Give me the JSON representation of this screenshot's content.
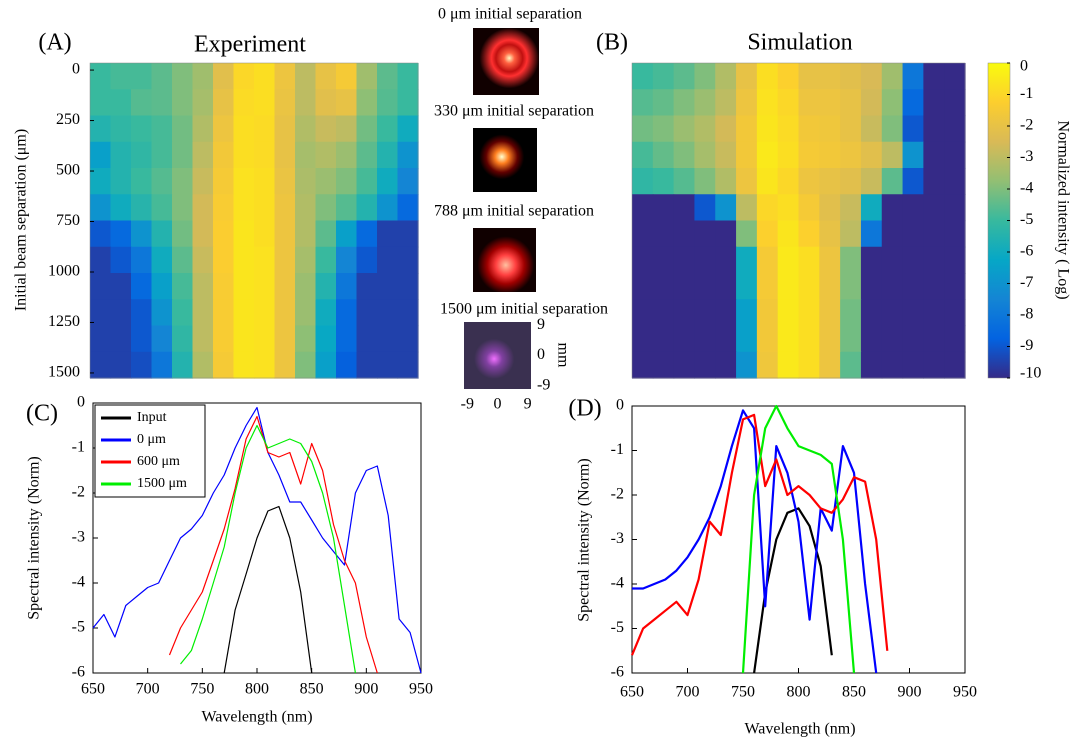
{
  "chart_data": [
    {
      "type": "heatmap",
      "panel_label": "(A)",
      "title": "Experiment",
      "ylabel": "Initial beam separation (μm)",
      "ylim": [
        -35,
        1525
      ],
      "y_inverted": true,
      "yticks": [
        0,
        250,
        500,
        750,
        1000,
        1250,
        1500
      ],
      "zlim": [
        -10,
        0
      ],
      "colormap": [
        "#352a87",
        "#0363e1",
        "#1485d4",
        "#06a7c6",
        "#38b99e",
        "#92bf73",
        "#d9ba56",
        "#fcce2e",
        "#f9fb0e"
      ],
      "z": [
        [
          -5,
          -4.8,
          -4.8,
          -4.5,
          -4,
          -3.5,
          -2.2,
          -1,
          -0.8,
          -1.8,
          -3,
          -2,
          -1.5,
          -3.5,
          -4.5,
          -5
        ],
        [
          -5,
          -5,
          -4.6,
          -4.5,
          -4,
          -3.4,
          -2,
          -0.9,
          -0.8,
          -1.9,
          -3,
          -2.2,
          -2,
          -3.8,
          -4.6,
          -5
        ],
        [
          -5.5,
          -5.2,
          -5,
          -4.8,
          -4.2,
          -3.2,
          -1.8,
          -0.8,
          -0.9,
          -2,
          -3.2,
          -2.8,
          -3,
          -4.2,
          -5,
          -6
        ],
        [
          -6.5,
          -5.5,
          -5.2,
          -4.8,
          -4.2,
          -3,
          -1.6,
          -0.8,
          -0.9,
          -2,
          -3.4,
          -3.2,
          -3.6,
          -4.5,
          -5.5,
          -7
        ],
        [
          -6,
          -5.5,
          -5,
          -4.6,
          -4,
          -2.8,
          -1.5,
          -0.7,
          -0.8,
          -1.9,
          -3.3,
          -3.6,
          -4,
          -4.8,
          -6,
          -7.5
        ],
        [
          -7,
          -6,
          -5.4,
          -4.8,
          -4,
          -2.6,
          -1.4,
          -0.7,
          -0.8,
          -1.8,
          -3.2,
          -4,
          -4.6,
          -5.5,
          -7,
          -8.5
        ],
        [
          -9,
          -8.5,
          -7,
          -5.5,
          -4.2,
          -2.6,
          -1.3,
          -0.6,
          -0.8,
          -1.8,
          -3.2,
          -4.5,
          -6.5,
          -8.5,
          -9.5,
          -9.5
        ],
        [
          -9.5,
          -9,
          -8,
          -6,
          -4.5,
          -2.8,
          -1.3,
          -0.6,
          -0.7,
          -1.8,
          -3.4,
          -5,
          -7.5,
          -9,
          -9.5,
          -9.5
        ],
        [
          -9.5,
          -9.5,
          -8.5,
          -6.5,
          -4.8,
          -3,
          -1.4,
          -0.6,
          -0.7,
          -1.8,
          -3.6,
          -5.5,
          -8,
          -9.5,
          -9.5,
          -9.5
        ],
        [
          -9.5,
          -9.5,
          -9,
          -7,
          -5,
          -3,
          -1.4,
          -0.6,
          -0.7,
          -1.8,
          -3.6,
          -6,
          -8.5,
          -9.5,
          -9.5,
          -9.5
        ],
        [
          -9.5,
          -9.5,
          -9,
          -7.5,
          -5.2,
          -3,
          -1.4,
          -0.6,
          -0.7,
          -1.8,
          -3.8,
          -6.2,
          -8.5,
          -9.5,
          -9.5,
          -9.5
        ],
        [
          -9.5,
          -9.5,
          -9.2,
          -8,
          -5.5,
          -3.2,
          -1.5,
          -0.6,
          -0.7,
          -1.8,
          -4,
          -6.5,
          -8.8,
          -9.5,
          -9.5,
          -9.5
        ]
      ]
    },
    {
      "type": "heatmap",
      "panel_label": "(B)",
      "title": "Simulation",
      "zlim": [
        -10,
        0
      ],
      "zticks": [
        0,
        -1,
        -2,
        -3,
        -4,
        -5,
        -6,
        -7,
        -8,
        -9,
        -10
      ],
      "zlabel": "Normalized intensity ( Log)",
      "colormap": [
        "#352a87",
        "#0363e1",
        "#1485d4",
        "#06a7c6",
        "#38b99e",
        "#92bf73",
        "#d9ba56",
        "#fcce2e",
        "#f9fb0e"
      ],
      "z": [
        [
          -5,
          -4.8,
          -4.5,
          -4,
          -3.2,
          -2,
          -0.8,
          -1.2,
          -2,
          -2,
          -2.2,
          -2.5,
          -3.5,
          -8,
          -10,
          -10
        ],
        [
          -4.6,
          -4.4,
          -4,
          -3.6,
          -3,
          -1.8,
          -0.7,
          -1,
          -1.8,
          -1.8,
          -2,
          -2.6,
          -3.8,
          -8.5,
          -10,
          -10
        ],
        [
          -4.2,
          -4,
          -3.6,
          -3.2,
          -2.6,
          -1.6,
          -0.6,
          -0.9,
          -1.6,
          -1.7,
          -2,
          -2.8,
          -4,
          -9,
          -10,
          -10
        ],
        [
          -4.8,
          -4.4,
          -4,
          -3.4,
          -2.8,
          -1.6,
          -0.5,
          -0.8,
          -1.5,
          -1.6,
          -1.8,
          -2.2,
          -3,
          -7,
          -10,
          -10
        ],
        [
          -5.2,
          -5,
          -4.6,
          -4,
          -3.2,
          -1.8,
          -0.6,
          -1,
          -1.8,
          -2,
          -2.2,
          -2.8,
          -4.5,
          -9,
          -10,
          -10
        ],
        [
          -10,
          -10,
          -10,
          -9,
          -7,
          -3,
          -1,
          -0.8,
          -1.5,
          -2.2,
          -2.8,
          -6,
          -10,
          -10,
          -10,
          -10
        ],
        [
          -10,
          -10,
          -10,
          -10,
          -10,
          -4,
          -1.2,
          -0.6,
          -1.2,
          -2,
          -3,
          -8,
          -10,
          -10,
          -10,
          -10
        ],
        [
          -10,
          -10,
          -10,
          -10,
          -10,
          -6,
          -1.5,
          -0.5,
          -0.8,
          -1.8,
          -4,
          -10,
          -10,
          -10,
          -10,
          -10
        ],
        [
          -10,
          -10,
          -10,
          -10,
          -10,
          -6,
          -1.5,
          -0.5,
          -0.8,
          -1.8,
          -4,
          -10,
          -10,
          -10,
          -10,
          -10
        ],
        [
          -10,
          -10,
          -10,
          -10,
          -10,
          -6.5,
          -1.6,
          -0.5,
          -0.8,
          -1.8,
          -4.2,
          -10,
          -10,
          -10,
          -10,
          -10
        ],
        [
          -10,
          -10,
          -10,
          -10,
          -10,
          -6.5,
          -1.6,
          -0.5,
          -0.8,
          -1.8,
          -4.2,
          -10,
          -10,
          -10,
          -10,
          -10
        ],
        [
          -10,
          -10,
          -10,
          -10,
          -10,
          -7,
          -1.7,
          -0.5,
          -0.8,
          -1.8,
          -4.5,
          -10,
          -10,
          -10,
          -10,
          -10
        ]
      ]
    },
    {
      "type": "line",
      "panel_label": "(C)",
      "xlabel": "Wavelength (nm)",
      "ylabel": "Spectral intensity (Norm)",
      "xlim": [
        650,
        950
      ],
      "xticks": [
        650,
        700,
        750,
        800,
        850,
        900,
        950
      ],
      "ylim": [
        -6,
        0
      ],
      "yticks": [
        0,
        -1,
        -2,
        -3,
        -4,
        -5,
        -6
      ],
      "legend": "upper left",
      "x": [
        650,
        660,
        670,
        680,
        690,
        700,
        710,
        720,
        730,
        740,
        750,
        760,
        770,
        780,
        790,
        800,
        810,
        820,
        830,
        840,
        850,
        860,
        870,
        880,
        890,
        900,
        910,
        920,
        930,
        940,
        950
      ],
      "series": [
        {
          "name": "Input",
          "color": "#000000",
          "values": [
            null,
            null,
            null,
            null,
            null,
            null,
            null,
            null,
            null,
            null,
            null,
            null,
            -6,
            -4.6,
            -3.8,
            -3.0,
            -2.4,
            -2.3,
            -3.0,
            -4.2,
            -6,
            null,
            null,
            null,
            null,
            null,
            null,
            null,
            null,
            null,
            null
          ]
        },
        {
          "name": "0 μm",
          "color": "#0000ff",
          "values": [
            -5,
            -4.7,
            -5.2,
            -4.5,
            -4.3,
            -4.1,
            -4.0,
            -3.5,
            -3.0,
            -2.8,
            -2.5,
            -2.0,
            -1.6,
            -1.0,
            -0.5,
            -0.1,
            -1.1,
            -1.6,
            -2.2,
            -2.2,
            -2.6,
            -3.0,
            -3.3,
            -3.6,
            -2.0,
            -1.5,
            -1.4,
            -2.5,
            -4.8,
            -5.1,
            -6
          ]
        },
        {
          "name": "600 μm",
          "color": "#ff0000",
          "values": [
            null,
            null,
            null,
            null,
            null,
            null,
            null,
            -5.6,
            -5.0,
            -4.6,
            -4.2,
            -3.5,
            -2.8,
            -1.9,
            -0.8,
            -0.3,
            -1.1,
            -1.2,
            -1.1,
            -1.8,
            -0.9,
            -1.5,
            -2.7,
            -3.5,
            -4.0,
            -5.2,
            -6,
            null,
            null,
            null,
            null
          ]
        },
        {
          "name": "1500 μm",
          "color": "#00ee00",
          "values": [
            null,
            null,
            null,
            null,
            null,
            null,
            null,
            null,
            -5.8,
            -5.5,
            -4.8,
            -4.0,
            -3.2,
            -2.0,
            -1.0,
            -0.5,
            -1.0,
            -0.9,
            -0.8,
            -0.9,
            -1.3,
            -2.0,
            -3.0,
            -4.5,
            -6,
            null,
            null,
            null,
            null,
            null,
            null
          ]
        }
      ]
    },
    {
      "type": "line",
      "panel_label": "(D)",
      "xlabel": "Wavelength (nm)",
      "ylabel": "Spectral intensity (Norm)",
      "xlim": [
        650,
        950
      ],
      "xticks": [
        650,
        700,
        750,
        800,
        850,
        900,
        950
      ],
      "ylim": [
        -6,
        0
      ],
      "yticks": [
        0,
        -1,
        -2,
        -3,
        -4,
        -5,
        -6
      ],
      "x": [
        650,
        660,
        670,
        680,
        690,
        700,
        710,
        720,
        730,
        740,
        750,
        760,
        770,
        780,
        790,
        800,
        810,
        820,
        830,
        840,
        850,
        860,
        870,
        880,
        890,
        900,
        910,
        920,
        930,
        940,
        950
      ],
      "series": [
        {
          "name": "Input",
          "color": "#000000",
          "values": [
            null,
            null,
            null,
            null,
            null,
            null,
            null,
            null,
            null,
            null,
            null,
            -6,
            -4.2,
            -3.0,
            -2.4,
            -2.3,
            -2.7,
            -3.6,
            -5.6,
            null,
            null,
            null,
            null,
            null,
            null,
            null,
            null,
            null,
            null,
            null,
            null
          ]
        },
        {
          "name": "0 μm",
          "color": "#0000ff",
          "values": [
            -4.1,
            -4.1,
            -4.0,
            -3.9,
            -3.7,
            -3.4,
            -3.0,
            -2.5,
            -1.8,
            -0.9,
            -0.1,
            -0.5,
            -4.5,
            -0.9,
            -1.5,
            -2.6,
            -4.8,
            -2.3,
            -2.8,
            -0.9,
            -1.5,
            -4.0,
            -6,
            null,
            null,
            null,
            null,
            null,
            null,
            null,
            null
          ]
        },
        {
          "name": "600 μm",
          "color": "#ff0000",
          "values": [
            -5.6,
            -5.0,
            -4.8,
            -4.6,
            -4.4,
            -4.7,
            -3.9,
            -2.6,
            -2.9,
            -1.5,
            -0.3,
            -0.2,
            -1.8,
            -1.2,
            -2.0,
            -1.8,
            -2.0,
            -2.3,
            -2.4,
            -2.1,
            -1.6,
            -1.7,
            -3.0,
            -5.5,
            null,
            null,
            null,
            null,
            null,
            null,
            null
          ]
        },
        {
          "name": "1500 μm",
          "color": "#00ee00",
          "values": [
            null,
            null,
            null,
            null,
            null,
            null,
            null,
            null,
            null,
            null,
            -6,
            -2.0,
            -0.5,
            0,
            -0.5,
            -0.9,
            -1.0,
            -1.1,
            -1.3,
            -3.0,
            -6,
            null,
            null,
            null,
            null,
            null,
            null,
            null,
            null,
            null,
            null
          ]
        }
      ]
    }
  ],
  "beam_images": {
    "captions": [
      "0 μm initial separation",
      "330 μm initial separation",
      "788 μm initial separation",
      "1500 μm initial separation"
    ],
    "axis_label": "mm",
    "xlim": [
      -10,
      10
    ],
    "xticks": [
      -9,
      0,
      9
    ],
    "ylim": [
      -10,
      10
    ],
    "yticks": [
      9,
      0,
      -9
    ]
  }
}
